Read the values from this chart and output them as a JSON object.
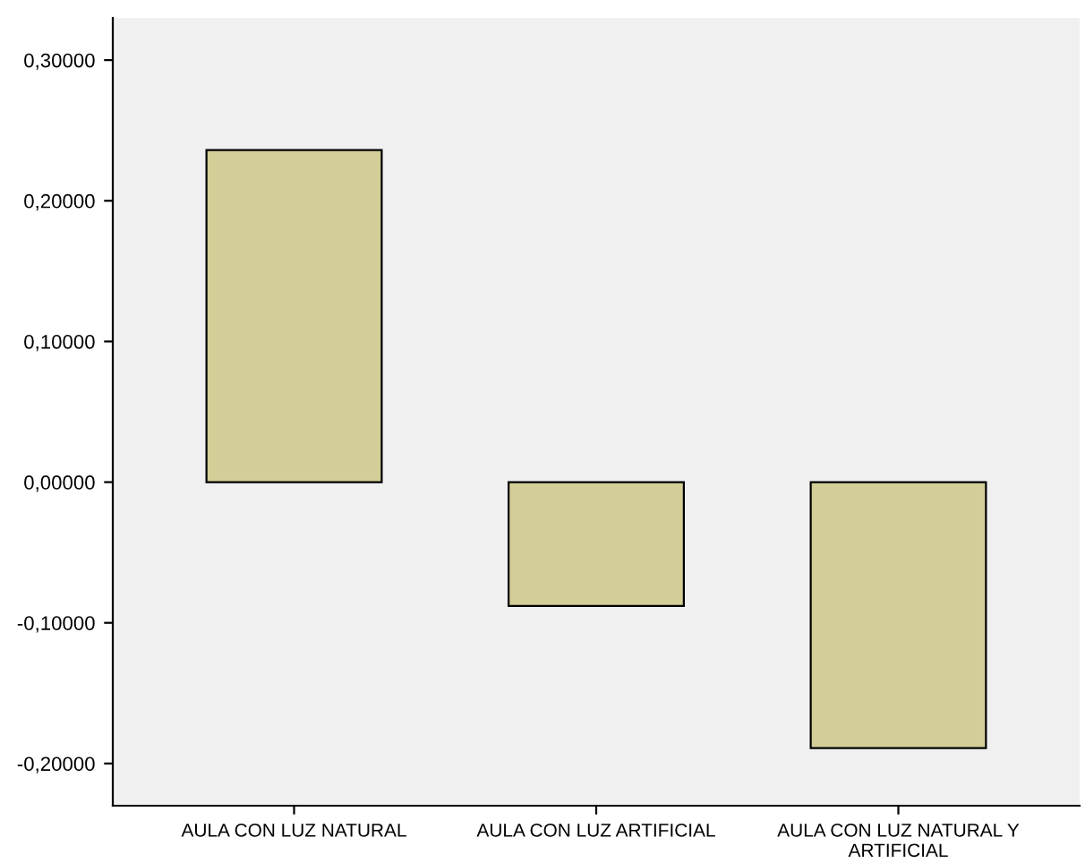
{
  "chart_data": {
    "type": "bar",
    "categories": [
      "AULA CON LUZ NATURAL",
      "AULA CON LUZ ARTIFICIAL",
      "AULA CON LUZ NATURAL Y\nARTIFICIAL"
    ],
    "values": [
      0.236,
      -0.088,
      -0.189
    ],
    "color": "#d3ce97",
    "ylim": [
      -0.23,
      0.33
    ],
    "yticks": [
      {
        "value": -0.2,
        "label": "-0,20000"
      },
      {
        "value": -0.1,
        "label": "-0,10000"
      },
      {
        "value": 0,
        "label": "0,00000"
      },
      {
        "value": 0.1,
        "label": "0,10000"
      },
      {
        "value": 0.2,
        "label": "0,20000"
      },
      {
        "value": 0.3,
        "label": "0,30000"
      }
    ],
    "grid": false
  }
}
